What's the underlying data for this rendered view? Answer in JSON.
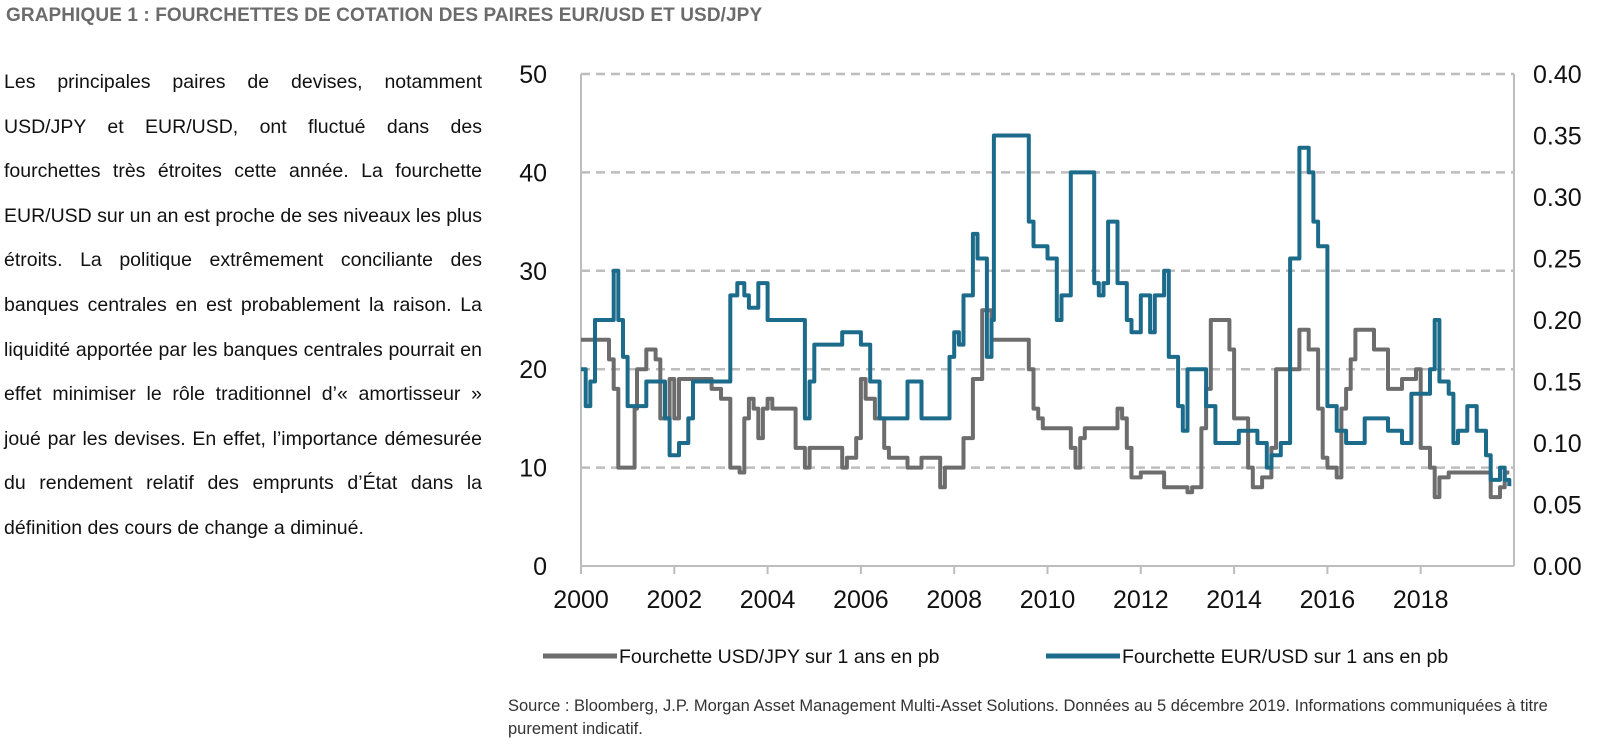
{
  "header": {
    "title": "GRAPHIQUE 1 : FOURCHETTES DE COTATION DES PAIRES EUR/USD ET USD/JPY"
  },
  "body_text": "Les principales paires de devises, notamment USD/JPY et EUR/USD, ont fluctué dans des fourchettes très étroites cette année. La fourchette EUR/USD sur un an est proche de ses niveaux les plus étroits. La politique extrêmement conciliante des banques centrales en est probablement la raison. La liquidité apportée par les banques centrales pourrait en effet minimiser le rôle traditionnel d’« amortisseur » joué par les devises. En effet, l’importance démesurée du rendement relatif des emprunts d’État dans la définition des cours de change a diminué.",
  "source": "Source : Bloomberg, J.P. Morgan Asset Management Multi-Asset Solutions. Données au 5 décembre 2019. Informations communiquées à titre purement indicatif.",
  "colors": {
    "usdjpy": "#6d6d6d",
    "eurusd": "#1c6b8a",
    "grid": "#bdbdbd",
    "axis": "#bdbdbd"
  },
  "chart_data": {
    "type": "line",
    "title": "",
    "xlim": [
      2000,
      2020
    ],
    "x_ticks": [
      "2000",
      "2002",
      "2004",
      "2006",
      "2008",
      "2010",
      "2012",
      "2014",
      "2016",
      "2018"
    ],
    "y_left": {
      "range": [
        0,
        50
      ],
      "ticks": [
        "0",
        "10",
        "20",
        "30",
        "40",
        "50"
      ]
    },
    "y_right": {
      "range": [
        0,
        0.4
      ],
      "ticks": [
        "0.00",
        "0.05",
        "0.10",
        "0.15",
        "0.20",
        "0.25",
        "0.30",
        "0.35",
        "0.40"
      ]
    },
    "grid": "horizontal dashed",
    "legend": {
      "placement": "bottom"
    },
    "series": [
      {
        "name": "Fourchette USD/JPY sur 1 ans en pb",
        "axis": "left",
        "x": [
          2000.0,
          2000.5,
          2000.6,
          2000.7,
          2000.8,
          2000.85,
          2001.0,
          2001.15,
          2001.2,
          2001.4,
          2001.6,
          2001.7,
          2001.9,
          2002.0,
          2002.1,
          2002.3,
          2002.6,
          2002.8,
          2003.0,
          2003.2,
          2003.4,
          2003.5,
          2003.6,
          2003.7,
          2003.8,
          2003.9,
          2004.0,
          2004.1,
          2004.3,
          2004.6,
          2004.8,
          2004.9,
          2005.0,
          2005.3,
          2005.6,
          2005.7,
          2005.9,
          2006.0,
          2006.1,
          2006.3,
          2006.5,
          2006.6,
          2006.8,
          2007.0,
          2007.2,
          2007.3,
          2007.5,
          2007.7,
          2007.8,
          2008.0,
          2008.2,
          2008.4,
          2008.6,
          2008.7,
          2008.8,
          2008.9,
          2009.0,
          2009.2,
          2009.4,
          2009.6,
          2009.7,
          2009.8,
          2009.9,
          2010.0,
          2010.3,
          2010.5,
          2010.6,
          2010.7,
          2010.8,
          2011.0,
          2011.3,
          2011.5,
          2011.6,
          2011.7,
          2011.8,
          2012.0,
          2012.3,
          2012.5,
          2012.6,
          2012.8,
          2013.0,
          2013.1,
          2013.3,
          2013.4,
          2013.5,
          2013.8,
          2013.9,
          2014.0,
          2014.3,
          2014.4,
          2014.6,
          2014.8,
          2014.9,
          2015.0,
          2015.2,
          2015.3,
          2015.4,
          2015.5,
          2015.6,
          2015.8,
          2015.9,
          2016.0,
          2016.2,
          2016.3,
          2016.4,
          2016.5,
          2016.6,
          2016.9,
          2017.0,
          2017.3,
          2017.5,
          2017.6,
          2017.9,
          2018.0,
          2018.2,
          2018.3,
          2018.4,
          2018.6,
          2019.0,
          2019.4,
          2019.5,
          2019.6,
          2019.7,
          2019.8,
          2019.9
        ],
        "values": [
          23,
          23,
          21,
          18,
          10,
          10,
          10,
          16,
          20,
          22,
          21,
          15,
          19,
          15,
          19,
          19,
          19,
          18,
          17,
          10,
          9.5,
          15,
          17,
          16,
          13,
          16,
          17,
          16,
          16,
          12,
          10,
          12,
          12,
          12,
          10,
          11,
          13,
          19,
          17,
          15,
          12,
          11,
          11,
          10,
          10,
          11,
          11,
          8,
          10,
          10,
          13,
          19,
          26,
          26,
          23,
          23,
          23,
          23,
          23,
          20,
          16,
          15,
          14,
          14,
          14,
          12,
          10,
          13,
          14,
          14,
          14,
          16,
          15,
          12,
          9,
          9.5,
          9.5,
          8,
          8,
          8,
          7.5,
          8,
          14,
          18,
          25,
          25,
          22,
          15,
          10,
          8,
          9,
          12,
          20,
          20,
          20,
          20,
          24,
          24,
          22,
          16,
          11,
          10,
          9,
          16,
          18,
          21,
          24,
          24,
          22,
          18,
          18,
          19,
          20,
          12,
          10,
          7,
          9,
          9.5,
          9.5,
          9.5,
          7,
          7,
          8,
          9.5,
          9.5
        ]
      },
      {
        "name": "Fourchette EUR/USD sur 1 ans en pb",
        "axis": "right",
        "x": [
          2000.0,
          2000.1,
          2000.2,
          2000.3,
          2000.5,
          2000.7,
          2000.8,
          2000.9,
          2001.0,
          2001.2,
          2001.4,
          2001.6,
          2001.8,
          2001.9,
          2002.0,
          2002.1,
          2002.3,
          2002.4,
          2002.5,
          2002.7,
          2003.0,
          2003.2,
          2003.35,
          2003.5,
          2003.6,
          2003.8,
          2004.0,
          2004.1,
          2004.2,
          2004.3,
          2004.6,
          2004.8,
          2004.9,
          2005.0,
          2005.2,
          2005.5,
          2005.6,
          2005.8,
          2006.0,
          2006.2,
          2006.4,
          2006.6,
          2006.8,
          2007.0,
          2007.3,
          2007.6,
          2007.9,
          2008.0,
          2008.1,
          2008.2,
          2008.4,
          2008.5,
          2008.7,
          2008.8,
          2008.85,
          2008.9,
          2009.0,
          2009.3,
          2009.5,
          2009.6,
          2009.7,
          2009.8,
          2010.0,
          2010.2,
          2010.3,
          2010.5,
          2010.6,
          2010.8,
          2011.0,
          2011.1,
          2011.2,
          2011.3,
          2011.5,
          2011.7,
          2011.8,
          2012.0,
          2012.2,
          2012.3,
          2012.5,
          2012.6,
          2012.8,
          2012.9,
          2013.0,
          2013.2,
          2013.4,
          2013.6,
          2013.8,
          2014.0,
          2014.1,
          2014.3,
          2014.5,
          2014.7,
          2014.8,
          2015.0,
          2015.2,
          2015.4,
          2015.6,
          2015.7,
          2015.8,
          2016.0,
          2016.2,
          2016.4,
          2016.6,
          2016.8,
          2017.0,
          2017.3,
          2017.6,
          2017.8,
          2018.0,
          2018.2,
          2018.3,
          2018.4,
          2018.6,
          2018.7,
          2018.8,
          2019.0,
          2019.2,
          2019.4,
          2019.5,
          2019.6,
          2019.7,
          2019.8,
          2019.9
        ],
        "values": [
          0.16,
          0.13,
          0.15,
          0.2,
          0.2,
          0.24,
          0.2,
          0.17,
          0.13,
          0.13,
          0.15,
          0.15,
          0.12,
          0.09,
          0.09,
          0.1,
          0.12,
          0.15,
          0.15,
          0.15,
          0.15,
          0.22,
          0.23,
          0.22,
          0.21,
          0.23,
          0.2,
          0.2,
          0.2,
          0.2,
          0.2,
          0.12,
          0.15,
          0.18,
          0.18,
          0.18,
          0.19,
          0.19,
          0.18,
          0.15,
          0.12,
          0.12,
          0.12,
          0.15,
          0.12,
          0.12,
          0.17,
          0.19,
          0.18,
          0.22,
          0.27,
          0.25,
          0.17,
          0.2,
          0.35,
          0.35,
          0.35,
          0.35,
          0.35,
          0.28,
          0.26,
          0.26,
          0.25,
          0.2,
          0.22,
          0.32,
          0.32,
          0.32,
          0.23,
          0.22,
          0.23,
          0.28,
          0.23,
          0.2,
          0.19,
          0.22,
          0.19,
          0.22,
          0.24,
          0.17,
          0.13,
          0.11,
          0.16,
          0.16,
          0.13,
          0.1,
          0.1,
          0.1,
          0.11,
          0.11,
          0.1,
          0.08,
          0.09,
          0.1,
          0.25,
          0.34,
          0.32,
          0.28,
          0.26,
          0.13,
          0.11,
          0.1,
          0.1,
          0.12,
          0.12,
          0.11,
          0.1,
          0.14,
          0.14,
          0.16,
          0.2,
          0.15,
          0.14,
          0.1,
          0.11,
          0.13,
          0.11,
          0.09,
          0.07,
          0.07,
          0.08,
          0.07,
          0.065
        ]
      }
    ]
  }
}
